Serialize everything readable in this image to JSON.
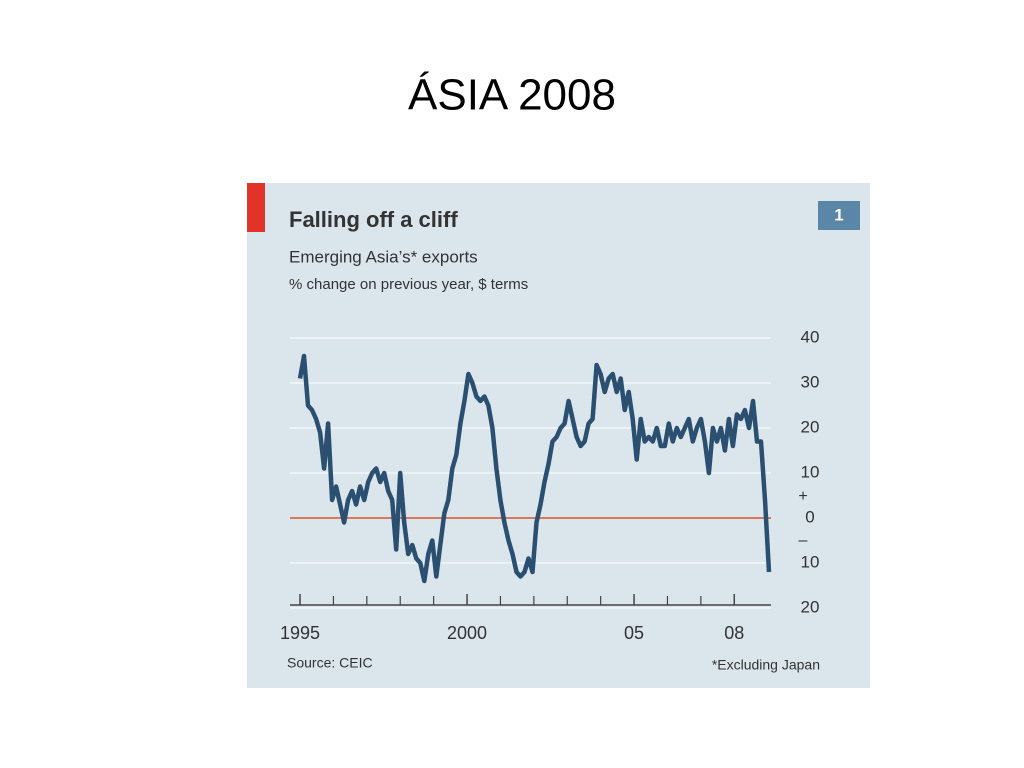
{
  "slide_title": "ÁSIA 2008",
  "chart_data": {
    "type": "line",
    "title": "Falling off a cliff",
    "subtitle": "Emerging Asia’s* exports",
    "units": "% change on previous year, $ terms",
    "chart_number": "1",
    "source": "Source: CEIC",
    "footnote": "*Excluding Japan",
    "positive_sign": "+",
    "negative_sign": "–",
    "color": "#2b4f70",
    "zero_line_color": "#e0502a",
    "grid": true,
    "xlim": [
      1994.7,
      2009.1
    ],
    "xticks": [
      1995,
      2000,
      {
        "value": 2005,
        "label": "05"
      },
      {
        "value": 2008,
        "label": "08"
      }
    ],
    "xticks_minor": [
      1996,
      1997,
      1998,
      1999,
      2001,
      2002,
      2003,
      2004,
      2006,
      2007
    ],
    "ylim": [
      -20,
      40
    ],
    "yticks": [
      40,
      30,
      20,
      10,
      0,
      {
        "value": -10,
        "label": "10"
      },
      {
        "value": -20,
        "label": "20"
      }
    ],
    "x": [
      1995,
      1995.12,
      1995.24,
      1995.36,
      1995.48,
      1995.6,
      1995.72,
      1995.84,
      1995.96,
      1996.08,
      1996.2,
      1996.32,
      1996.44,
      1996.56,
      1996.68,
      1996.8,
      1996.92,
      1997.04,
      1997.16,
      1997.28,
      1997.4,
      1997.52,
      1997.64,
      1997.76,
      1997.88,
      1998,
      1998.12,
      1998.24,
      1998.36,
      1998.48,
      1998.6,
      1998.72,
      1998.84,
      1998.96,
      1999.08,
      1999.2,
      1999.32,
      1999.44,
      1999.56,
      1999.68,
      1999.8,
      1999.92,
      2000.04,
      2000.16,
      2000.28,
      2000.4,
      2000.52,
      2000.64,
      2000.76,
      2000.88,
      2001,
      2001.12,
      2001.24,
      2001.36,
      2001.48,
      2001.6,
      2001.72,
      2001.84,
      2001.96,
      2002.08,
      2002.2,
      2002.32,
      2002.44,
      2002.56,
      2002.68,
      2002.8,
      2002.92,
      2003.04,
      2003.16,
      2003.28,
      2003.4,
      2003.52,
      2003.64,
      2003.76,
      2003.88,
      2004,
      2004.12,
      2004.24,
      2004.36,
      2004.48,
      2004.6,
      2004.72,
      2004.84,
      2004.96,
      2005.08,
      2005.2,
      2005.32,
      2005.44,
      2005.56,
      2005.68,
      2005.8,
      2005.92,
      2006.04,
      2006.16,
      2006.28,
      2006.4,
      2006.52,
      2006.64,
      2006.76,
      2006.88,
      2007,
      2007.12,
      2007.24,
      2007.36,
      2007.48,
      2007.6,
      2007.72,
      2007.84,
      2007.96,
      2008.08,
      2008.2,
      2008.32,
      2008.44,
      2008.56,
      2008.68,
      2008.8,
      2008.92,
      2009.04
    ],
    "values": [
      31,
      36,
      25,
      24,
      22,
      19,
      11,
      21,
      4,
      7,
      3,
      -1,
      4,
      6,
      3,
      7,
      4,
      8,
      10,
      11,
      8,
      10,
      6,
      4,
      -7,
      10,
      -1,
      -8,
      -6,
      -9,
      -10,
      -14,
      -8,
      -5,
      -13,
      -6,
      1,
      4,
      11,
      14,
      21,
      26,
      32,
      30,
      27,
      26,
      27,
      25,
      20,
      11,
      4,
      -1,
      -5,
      -8,
      -12,
      -13,
      -12,
      -9,
      -12,
      -1,
      3,
      8,
      12,
      17,
      18,
      20,
      21,
      26,
      22,
      18,
      16,
      17,
      21,
      22,
      34,
      32,
      28,
      31,
      32,
      28,
      31,
      24,
      28,
      22,
      13,
      22,
      17,
      18,
      17,
      20,
      16,
      16,
      21,
      17,
      20,
      18,
      20,
      22,
      17,
      20,
      22,
      17,
      10,
      20,
      17,
      20,
      15,
      22,
      16,
      23,
      22,
      24,
      20,
      26,
      17,
      17,
      4,
      -12
    ]
  }
}
